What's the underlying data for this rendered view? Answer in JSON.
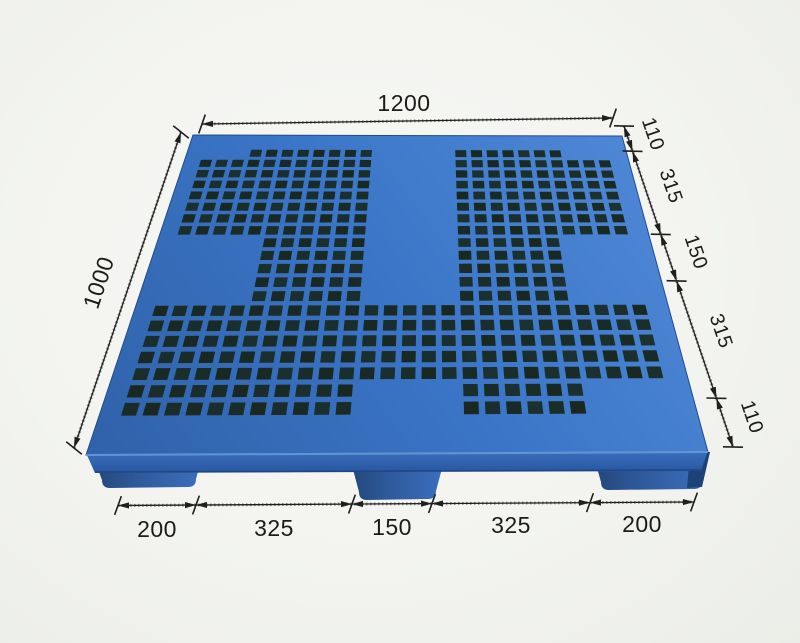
{
  "palette": {
    "pallet_blue": "#3b75c7",
    "pallet_blue_light": "#4f89d6",
    "pallet_blue_dark": "#3063ab",
    "pallet_side": "#27549c",
    "pallet_foot_dark": "#234677",
    "hole_dark": "#18281f",
    "line_color": "#1f1f1f",
    "background": "#f3f4f0"
  },
  "dimensions": {
    "top": {
      "label": "1200"
    },
    "left": {
      "label": "1000"
    },
    "right": {
      "labels": [
        "110",
        "315",
        "150",
        "315",
        "110"
      ]
    },
    "bottom": {
      "labels": [
        "200",
        "325",
        "150",
        "325",
        "200"
      ]
    }
  }
}
